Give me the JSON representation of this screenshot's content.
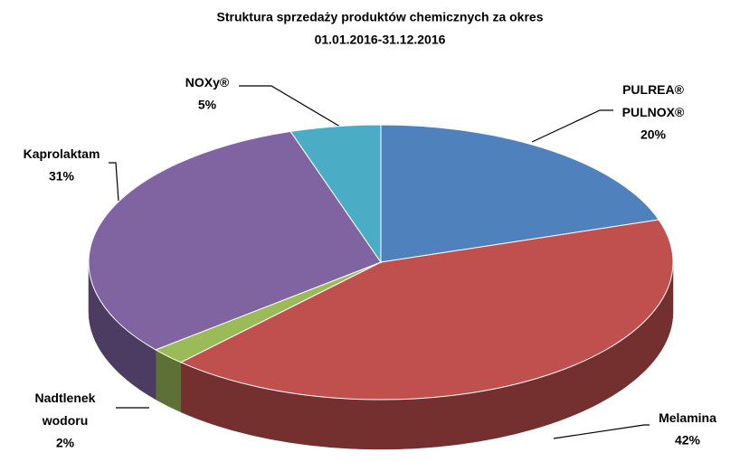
{
  "chart_data": {
    "type": "pie",
    "title": [
      "Struktura sprzedaży produktów chemicznych za okres",
      "01.01.2016-31.12.2016"
    ],
    "categories": [
      "PULREA® PULNOX®",
      "Melamina",
      "Nadtlenek wodoru",
      "Kaprolaktam",
      "NOXy®"
    ],
    "values": [
      20,
      42,
      2,
      31,
      5
    ],
    "value_labels": [
      "20%",
      "42%",
      "2%",
      "31%",
      "5%"
    ],
    "colors": [
      "#4f81bd",
      "#c0504d",
      "#9bbb59",
      "#8064a2",
      "#4bacc6"
    ]
  }
}
